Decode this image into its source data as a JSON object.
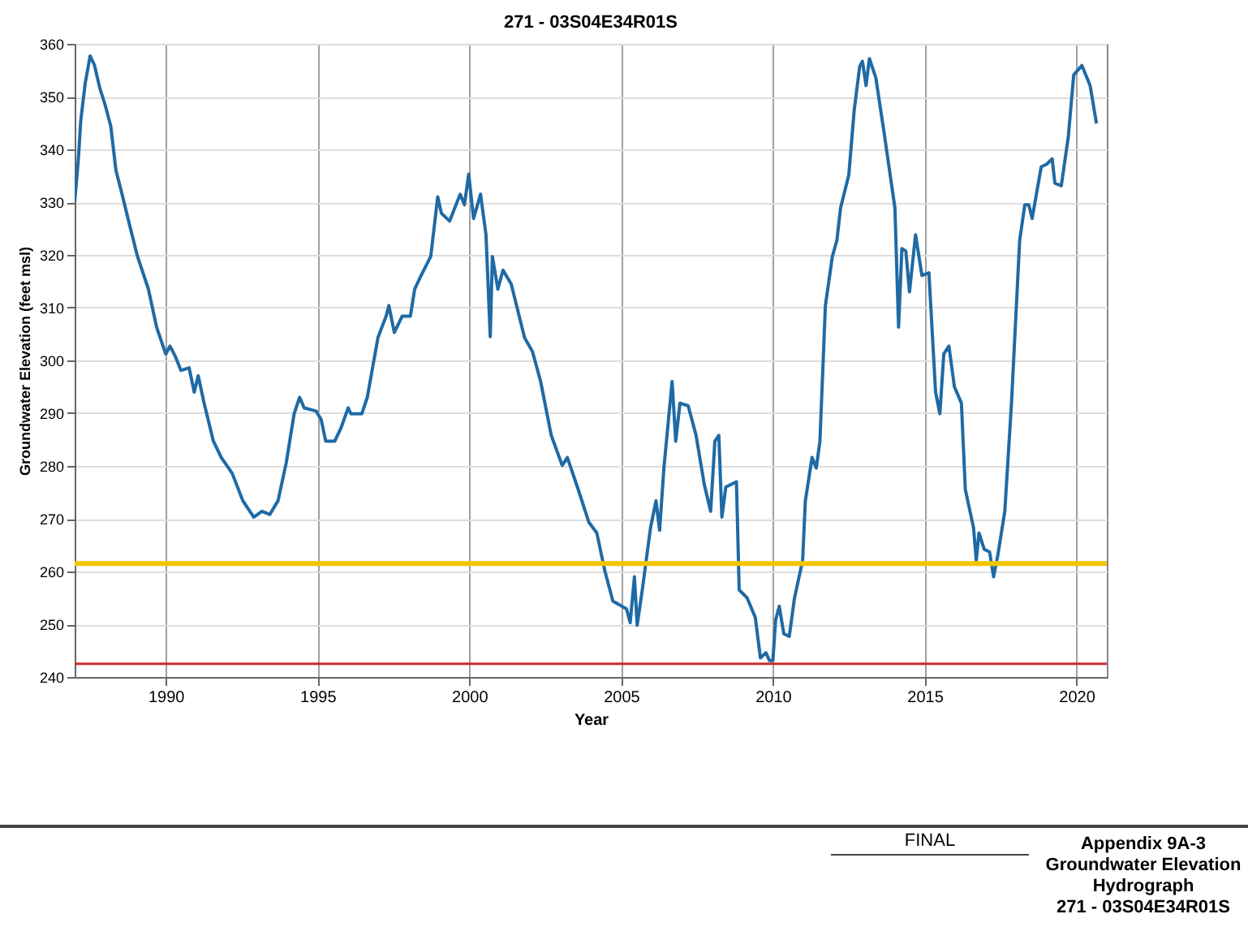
{
  "chart_data": {
    "type": "line",
    "title": "271 - 03S04E34R01S",
    "xlabel": "Year",
    "ylabel": "Groundwater Elevation (feet msl)",
    "xlim": [
      1987,
      2021
    ],
    "xticks": [
      1990,
      1995,
      2000,
      2005,
      2010,
      2015,
      2020
    ],
    "ylim": [
      240,
      360
    ],
    "yticks": [
      240,
      250,
      260,
      270,
      280,
      290,
      300,
      310,
      320,
      330,
      340,
      350,
      360
    ],
    "grid": true,
    "marker": "none",
    "line_style": "solid",
    "x": [
      1987.0,
      1987.12,
      1987.2,
      1987.35,
      1987.51,
      1987.65,
      1987.83,
      1988.0,
      1988.19,
      1988.36,
      1988.54,
      1988.8,
      1989.07,
      1989.43,
      1989.7,
      1990.0,
      1990.14,
      1990.32,
      1990.5,
      1990.77,
      1990.94,
      1991.07,
      1991.26,
      1991.57,
      1991.83,
      1992.19,
      1992.54,
      1992.9,
      1993.17,
      1993.43,
      1993.7,
      1993.97,
      1994.23,
      1994.41,
      1994.56,
      1994.95,
      1995.12,
      1995.27,
      1995.57,
      1995.78,
      1996.01,
      1996.1,
      1996.46,
      1996.64,
      1996.99,
      1997.26,
      1997.35,
      1997.53,
      1997.79,
      1998.06,
      1998.2,
      1998.37,
      1998.73,
      1998.96,
      1999.08,
      1999.35,
      1999.7,
      1999.84,
      1999.98,
      2000.14,
      2000.37,
      2000.55,
      2000.69,
      2000.76,
      2000.94,
      2001.11,
      2001.38,
      2001.82,
      2002.08,
      2002.35,
      2002.7,
      2003.06,
      2003.23,
      2003.59,
      2003.94,
      2004.2,
      2004.47,
      2004.73,
      2005.18,
      2005.3,
      2005.44,
      2005.53,
      2005.71,
      2005.97,
      2006.15,
      2006.27,
      2006.41,
      2006.68,
      2006.8,
      2006.94,
      2007.21,
      2007.47,
      2007.74,
      2007.95,
      2008.09,
      2008.22,
      2008.32,
      2008.45,
      2008.8,
      2008.89,
      2009.15,
      2009.42,
      2009.59,
      2009.77,
      2009.89,
      2010.0,
      2010.09,
      2010.21,
      2010.36,
      2010.54,
      2010.71,
      2010.98,
      2011.07,
      2011.29,
      2011.43,
      2011.55,
      2011.73,
      2011.96,
      2012.11,
      2012.23,
      2012.5,
      2012.68,
      2012.86,
      2012.95,
      2013.07,
      2013.18,
      2013.39,
      2013.66,
      2014.02,
      2014.14,
      2014.25,
      2014.38,
      2014.5,
      2014.7,
      2014.91,
      2015.14,
      2015.36,
      2015.5,
      2015.63,
      2015.8,
      2015.98,
      2016.21,
      2016.34,
      2016.61,
      2016.7,
      2016.79,
      2016.96,
      2017.14,
      2017.27,
      2017.41,
      2017.64,
      2017.86,
      2018.13,
      2018.3,
      2018.43,
      2018.54,
      2018.84,
      2019.02,
      2019.2,
      2019.29,
      2019.5,
      2019.73,
      2019.91,
      2020.18,
      2020.45,
      2020.66
    ],
    "series": [
      {
        "color": "#1f6aa5",
        "values": [
          330.0,
          338,
          345.4,
          352.6,
          357.7,
          356,
          351.6,
          348.5,
          344.4,
          336,
          332,
          325.9,
          319.7,
          313.5,
          306.3,
          301.2,
          302.7,
          300.7,
          298.1,
          298.6,
          294,
          297.1,
          292,
          284.7,
          281.6,
          278.6,
          273.4,
          270.3,
          271.4,
          270.8,
          273.4,
          280.6,
          289.9,
          293,
          291,
          290.4,
          288.8,
          284.7,
          284.7,
          287.3,
          291,
          289.9,
          289.9,
          293,
          304.3,
          308.4,
          310.4,
          305.3,
          308.4,
          308.4,
          313.5,
          315.6,
          319.7,
          331,
          327.9,
          326.4,
          331.5,
          329.5,
          335.3,
          326.9,
          331.5,
          323.8,
          304.5,
          319.7,
          313.5,
          317.1,
          314.5,
          304.3,
          301.7,
          296,
          285.8,
          280.1,
          281.6,
          275.5,
          269.3,
          267.3,
          260,
          254.4,
          252.9,
          250.3,
          259,
          249.8,
          257,
          268.3,
          273.4,
          267.8,
          279.6,
          296,
          284.7,
          291.9,
          291.4,
          285.8,
          276.5,
          271.4,
          284.7,
          285.8,
          270.3,
          276,
          277,
          256.5,
          255,
          251.3,
          243.6,
          244.6,
          243.1,
          243.1,
          250.8,
          253.4,
          248.2,
          247.7,
          254.9,
          262.1,
          273.4,
          281.6,
          279.6,
          284.7,
          310.4,
          319.7,
          322.8,
          328.9,
          335.1,
          347.5,
          355.7,
          356.7,
          352.1,
          357.2,
          353.6,
          343.3,
          328.9,
          306.3,
          321.2,
          320.7,
          313,
          323.8,
          316.1,
          316.6,
          294,
          289.9,
          301.2,
          302.7,
          295,
          291.9,
          275.5,
          268.3,
          262.1,
          267.3,
          264.2,
          263.7,
          259,
          263.1,
          271.4,
          291.9,
          322.8,
          329.5,
          329.5,
          326.9,
          336.7,
          337.2,
          338.2,
          333.6,
          333.1,
          342.3,
          354.1,
          355.9,
          352.1,
          344.9
        ]
      }
    ],
    "ref_lines": [
      {
        "axis": "y",
        "value": 261.5,
        "color": "#f2c500"
      },
      {
        "axis": "y",
        "value": 242.5,
        "color": "#cc2b2b"
      }
    ],
    "annotations": [
      "FINAL",
      "Appendix 9A-3",
      "Groundwater Elevation",
      "Hydrograph",
      "271 - 03S04E34R01S"
    ]
  }
}
